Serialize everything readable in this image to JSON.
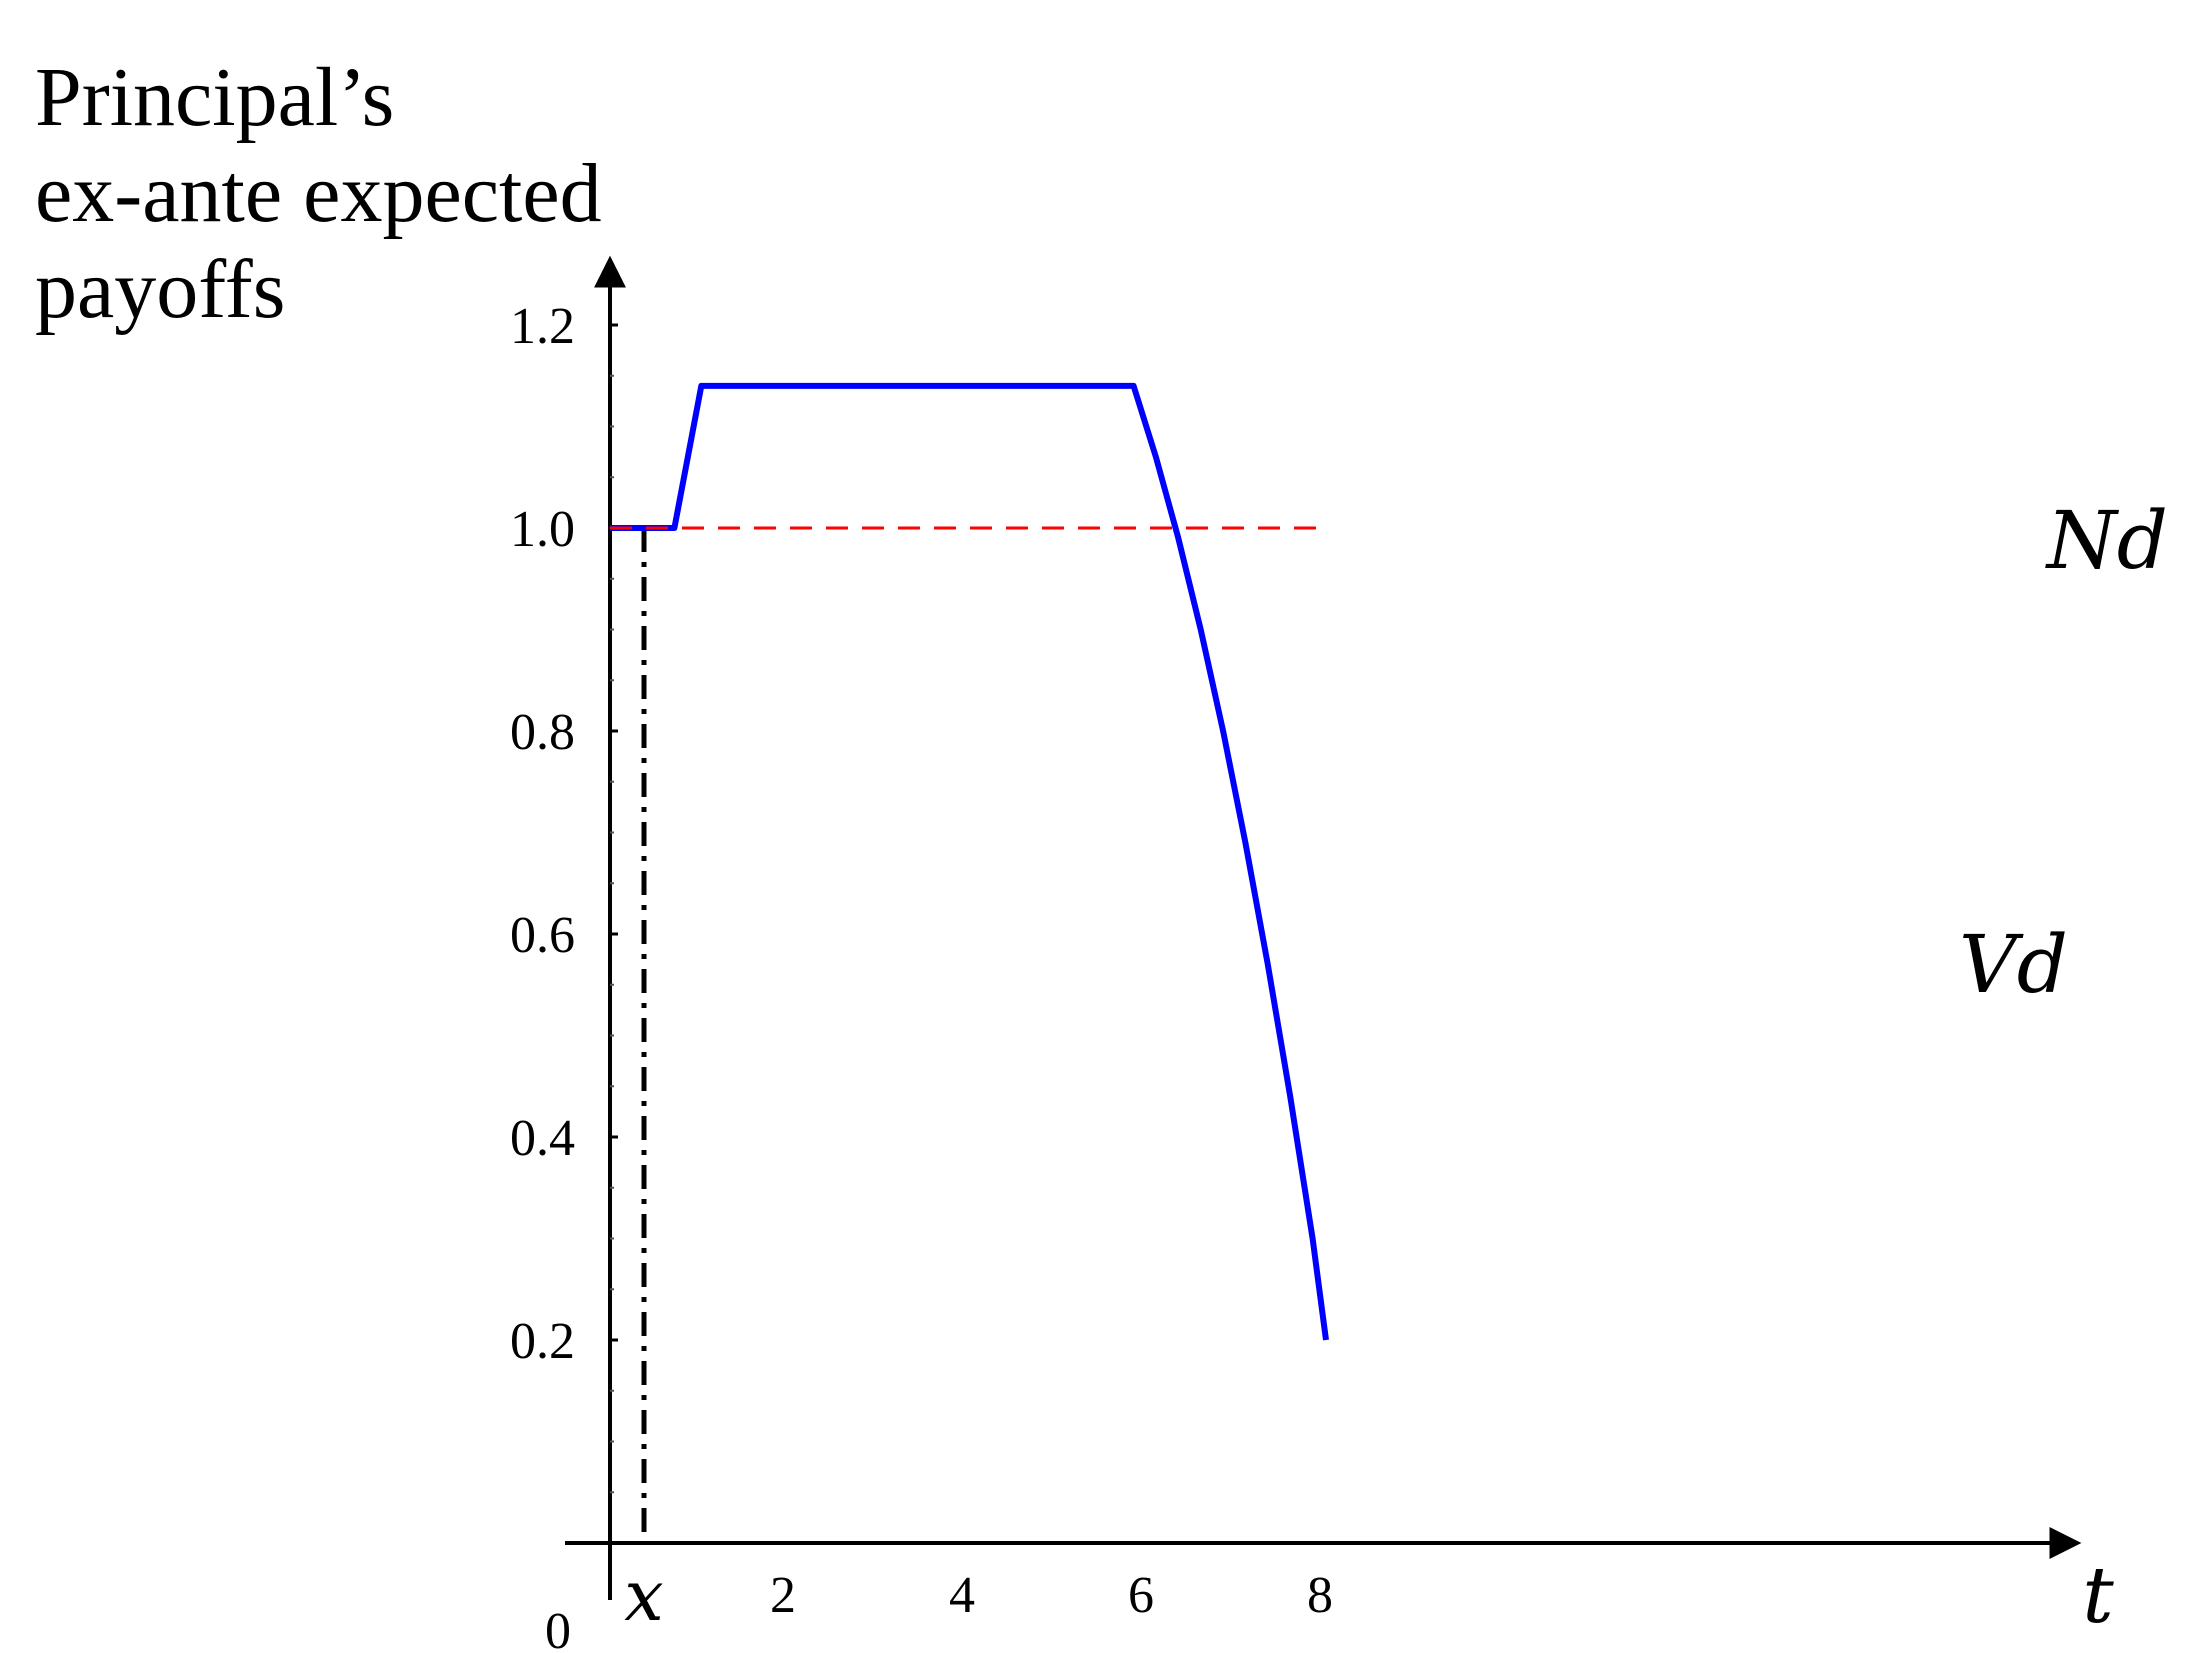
{
  "chart_data": {
    "type": "line",
    "title": "",
    "ylabel_lines": [
      "Principal’s",
      "ex-ante expected",
      "payoffs"
    ],
    "xlabel": "t",
    "origin_label": "0",
    "x_ticks": [
      {
        "value": 2,
        "label": "2"
      },
      {
        "value": 4,
        "label": "4"
      },
      {
        "value": 6,
        "label": "6"
      },
      {
        "value": 8,
        "label": "8"
      }
    ],
    "y_ticks": [
      {
        "value": 0.2,
        "label": "0.2"
      },
      {
        "value": 0.4,
        "label": "0.4"
      },
      {
        "value": 0.6,
        "label": "0.6"
      },
      {
        "value": 0.8,
        "label": "0.8"
      },
      {
        "value": 1.0,
        "label": "1.0"
      },
      {
        "value": 1.2,
        "label": "1.2"
      }
    ],
    "xlim": [
      0,
      8.3
    ],
    "ylim": [
      0,
      1.27
    ],
    "grid": false,
    "series": [
      {
        "name": "Vd",
        "color": "#0000ff",
        "style": "solid",
        "x": [
          0,
          0.72,
          1.02,
          5.85,
          6.1,
          6.35,
          6.6,
          6.85,
          7.1,
          7.35,
          7.6,
          7.85,
          8.0
        ],
        "y": [
          1.0,
          1.0,
          1.14,
          1.14,
          1.07,
          0.99,
          0.9,
          0.8,
          0.69,
          0.57,
          0.44,
          0.3,
          0.2
        ]
      },
      {
        "name": "Nd",
        "color": "#ff0000",
        "style": "dashed",
        "x": [
          0,
          8.0
        ],
        "y": [
          1.0,
          1.0
        ]
      }
    ],
    "annotations": [
      {
        "type": "vline",
        "x": 0.38,
        "style": "dash-dot",
        "color": "#000000",
        "label": "x"
      }
    ]
  }
}
